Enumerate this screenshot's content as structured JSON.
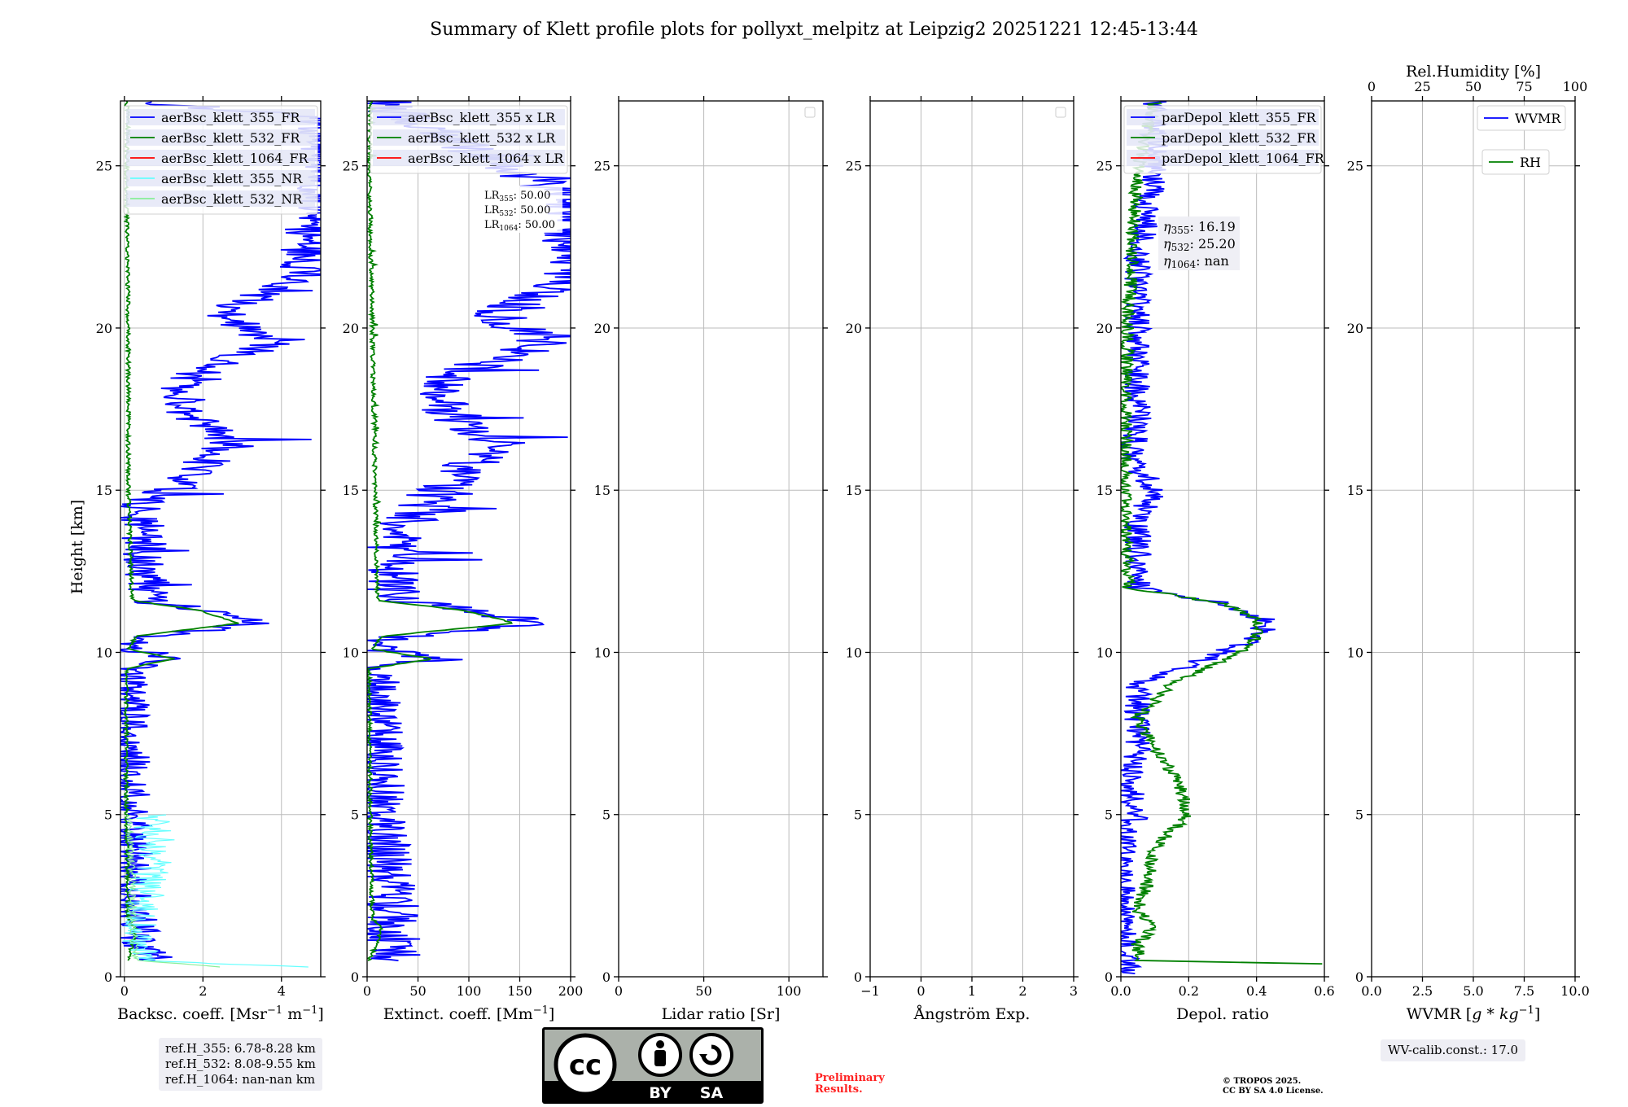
{
  "title": "Summary of Klett profile plots for pollyxt_melpitz at Leipzig2 20251221 12:45-13:44",
  "ylabel": "Height [km]",
  "colors": {
    "c355": "#0000ff",
    "c532": "#008000",
    "c1064": "#ff0000",
    "c355nr": "#66ffff",
    "c532nr": "#88ee99",
    "grid": "#bbbbbb",
    "legend_bg": "#ffffff",
    "legend_hl": "#d8dcf4"
  },
  "chart_data": [
    {
      "id": "backscatter",
      "type": "line",
      "xlabel_html": "Backsc. coeff. [Msr<tspan dy=\"-7\" font-size=\"13\">−1</tspan><tspan dy=\"7\"> m</tspan><tspan dy=\"-7\" font-size=\"13\">−1</tspan><tspan dy=\"7\">]</tspan>",
      "xlabel_text": "Backsc. coeff. [Msr−1 m−1]",
      "xlim": [
        -0.1,
        5
      ],
      "ylim": [
        0,
        27
      ],
      "xticks": [
        0,
        2,
        4
      ],
      "yticks": [
        0,
        5,
        10,
        15,
        20,
        25
      ],
      "legend": [
        "aerBsc_klett_355_FR",
        "aerBsc_klett_532_FR",
        "aerBsc_klett_1064_FR",
        "aerBsc_klett_355_NR",
        "aerBsc_klett_532_NR"
      ],
      "series": [
        {
          "name": "aerBsc_klett_355_FR",
          "color": "c355",
          "profile": [
            [
              0.5,
              0.6
            ],
            [
              0.7,
              0.65
            ],
            [
              1.0,
              0.3
            ],
            [
              1.5,
              0.4
            ],
            [
              2.0,
              0.15
            ],
            [
              3.0,
              0.15
            ],
            [
              5.0,
              0.1
            ],
            [
              8.0,
              0.05
            ],
            [
              9.5,
              0.05
            ],
            [
              9.8,
              1.5
            ],
            [
              10.1,
              0.1
            ],
            [
              10.4,
              0.3
            ],
            [
              10.9,
              3.2
            ],
            [
              11.3,
              2.2
            ],
            [
              11.6,
              0.5
            ],
            [
              12.5,
              0.6
            ],
            [
              13.5,
              0.5
            ],
            [
              14.5,
              0.4
            ],
            [
              15.3,
              1.6
            ],
            [
              16.5,
              2.6
            ],
            [
              17.5,
              1.5
            ],
            [
              18.5,
              1.5
            ],
            [
              19.5,
              3.8
            ],
            [
              20.5,
              2.5
            ],
            [
              21.5,
              4.5
            ],
            [
              22.5,
              4.5
            ],
            [
              24.0,
              5.0
            ],
            [
              26.5,
              5.0
            ],
            [
              27.0,
              0.1
            ]
          ],
          "noise": 0.6
        },
        {
          "name": "aerBsc_klett_532_FR",
          "color": "c532",
          "profile": [
            [
              0.5,
              0.1
            ],
            [
              1.5,
              0.3
            ],
            [
              1.8,
              0.1
            ],
            [
              5.0,
              0.05
            ],
            [
              9.5,
              0.05
            ],
            [
              9.8,
              1.3
            ],
            [
              10.1,
              0.1
            ],
            [
              10.5,
              0.3
            ],
            [
              10.9,
              2.9
            ],
            [
              11.3,
              1.9
            ],
            [
              11.6,
              0.2
            ],
            [
              15.0,
              0.1
            ],
            [
              20.0,
              0.1
            ],
            [
              25.0,
              0.05
            ],
            [
              26.5,
              0.1
            ],
            [
              27.0,
              0.05
            ]
          ],
          "noise": 0.05
        },
        {
          "name": "aerBsc_klett_355_NR",
          "color": "c355nr",
          "profile": [
            [
              0.3,
              4.3
            ],
            [
              0.5,
              0.5
            ],
            [
              1.5,
              0.4
            ],
            [
              3.0,
              0.6
            ],
            [
              4.0,
              0.8
            ],
            [
              5.0,
              0.7
            ]
          ],
          "noise": 0.5
        },
        {
          "name": "aerBsc_klett_532_NR",
          "color": "c532nr",
          "profile": [
            [
              0.3,
              2.5
            ],
            [
              0.5,
              0.3
            ],
            [
              1.5,
              0.2
            ],
            [
              3.0,
              0.2
            ],
            [
              5.0,
              0.1
            ]
          ],
          "noise": 0.1
        }
      ]
    },
    {
      "id": "extinction",
      "type": "line",
      "xlabel_html": "Extinct. coeff. [Mm<tspan dy=\"-7\" font-size=\"13\">−1</tspan><tspan dy=\"7\">]</tspan>",
      "xlabel_text": "Extinct. coeff. [Mm−1]",
      "xlim": [
        0,
        200
      ],
      "ylim": [
        0,
        27
      ],
      "xticks": [
        0,
        50,
        100,
        150,
        200
      ],
      "yticks": [
        0,
        5,
        10,
        15,
        20,
        25
      ],
      "legend": [
        "aerBsc_klett_355 x LR",
        "aerBsc_klett_532 x LR",
        "aerBsc_klett_1064 x LR"
      ],
      "annotation": [
        "LR355: 50.00",
        "LR532: 50.00",
        "LR1064: 50.00"
      ],
      "series": [
        {
          "name": "aerBsc_klett_355 x LR",
          "color": "c355",
          "profile": [
            [
              0.5,
              30
            ],
            [
              0.8,
              30
            ],
            [
              1.5,
              20
            ],
            [
              2.0,
              25
            ],
            [
              5.0,
              10
            ],
            [
              9.5,
              5
            ],
            [
              9.8,
              75
            ],
            [
              10.1,
              5
            ],
            [
              10.4,
              15
            ],
            [
              10.9,
              165
            ],
            [
              11.3,
              110
            ],
            [
              11.6,
              25
            ],
            [
              13.5,
              25
            ],
            [
              15.3,
              80
            ],
            [
              16.5,
              130
            ],
            [
              17.5,
              75
            ],
            [
              18.5,
              75
            ],
            [
              19.5,
              175
            ],
            [
              20.5,
              125
            ],
            [
              21.5,
              200
            ],
            [
              24.0,
              200
            ],
            [
              27.0,
              5
            ]
          ],
          "noise": 28
        },
        {
          "name": "aerBsc_klett_532 x LR",
          "color": "c532",
          "profile": [
            [
              0.5,
              2
            ],
            [
              1.5,
              15
            ],
            [
              1.8,
              5
            ],
            [
              5.0,
              3
            ],
            [
              9.5,
              2
            ],
            [
              9.8,
              65
            ],
            [
              10.1,
              5
            ],
            [
              10.5,
              15
            ],
            [
              10.9,
              145
            ],
            [
              11.3,
              95
            ],
            [
              11.6,
              10
            ],
            [
              20.0,
              5
            ],
            [
              25.0,
              2
            ],
            [
              27.0,
              3
            ]
          ],
          "noise": 2
        }
      ]
    },
    {
      "id": "lidar_ratio",
      "type": "line",
      "xlabel_text": "Lidar ratio [Sr]",
      "xlim": [
        0,
        120
      ],
      "ylim": [
        0,
        27
      ],
      "xticks": [
        0,
        50,
        100
      ],
      "yticks": [
        0,
        5,
        10,
        15,
        20,
        25
      ],
      "series": []
    },
    {
      "id": "angstroem",
      "type": "line",
      "xlabel_text": "Ångström Exp.",
      "xlim": [
        -1,
        3
      ],
      "ylim": [
        0,
        27
      ],
      "xticks": [
        -1,
        0,
        1,
        2,
        3
      ],
      "yticks": [
        0,
        5,
        10,
        15,
        20,
        25
      ],
      "series": []
    },
    {
      "id": "depol",
      "type": "line",
      "xlabel_text": "Depol. ratio",
      "xlim": [
        0,
        0.6
      ],
      "ylim": [
        0,
        27
      ],
      "xticks": [
        0.0,
        0.2,
        0.4,
        0.6
      ],
      "yticks": [
        0,
        5,
        10,
        15,
        20,
        25
      ],
      "legend": [
        "parDepol_klett_355_FR",
        "parDepol_klett_532_FR",
        "parDepol_klett_1064_FR"
      ],
      "annotation": [
        "η355: 16.19",
        "η532: 25.20",
        "η1064: nan"
      ],
      "series": [
        {
          "name": "parDepol_klett_355_FR",
          "color": "c355",
          "profile": [
            [
              0.1,
              0.02
            ],
            [
              3.0,
              0.0
            ],
            [
              4.5,
              0.01
            ],
            [
              5.0,
              0.05
            ],
            [
              6.0,
              0.02
            ],
            [
              7.0,
              0.05
            ],
            [
              8.0,
              0.05
            ],
            [
              9.0,
              0.05
            ],
            [
              10.0,
              0.3
            ],
            [
              10.5,
              0.42
            ],
            [
              11.0,
              0.42
            ],
            [
              11.5,
              0.3
            ],
            [
              12.0,
              0.05
            ],
            [
              14.0,
              0.05
            ],
            [
              15.0,
              0.1
            ],
            [
              16.0,
              0.03
            ],
            [
              17.0,
              0.05
            ],
            [
              20.0,
              0.05
            ],
            [
              22.0,
              0.05
            ],
            [
              25.0,
              0.1
            ],
            [
              27.0,
              0.1
            ]
          ],
          "noise": 0.04
        },
        {
          "name": "parDepol_klett_532_FR",
          "color": "c532",
          "profile": [
            [
              0.4,
              0.6
            ],
            [
              0.5,
              0.05
            ],
            [
              1.0,
              0.05
            ],
            [
              1.6,
              0.1
            ],
            [
              2.0,
              0.05
            ],
            [
              3.0,
              0.08
            ],
            [
              4.0,
              0.1
            ],
            [
              5.0,
              0.2
            ],
            [
              6.0,
              0.17
            ],
            [
              7.0,
              0.1
            ],
            [
              8.0,
              0.05
            ],
            [
              9.0,
              0.15
            ],
            [
              10.0,
              0.35
            ],
            [
              10.5,
              0.4
            ],
            [
              11.0,
              0.4
            ],
            [
              11.5,
              0.3
            ],
            [
              12.0,
              0.02
            ],
            [
              15.0,
              0.01
            ],
            [
              20.0,
              0.02
            ],
            [
              25.0,
              0.05
            ],
            [
              27.0,
              0.1
            ]
          ],
          "noise": 0.02
        }
      ]
    },
    {
      "id": "wvmr",
      "type": "line",
      "xlabel_html": "WVMR [<tspan font-style=\"italic\">g</tspan> * <tspan font-style=\"italic\">kg</tspan><tspan dy=\"-7\" font-size=\"13\">−1</tspan><tspan dy=\"7\">]</tspan>",
      "xlabel_text": "WVMR [g * kg−1]",
      "xlim": [
        0,
        10
      ],
      "ylim": [
        0,
        27
      ],
      "xticks": [
        0.0,
        2.5,
        5.0,
        7.5,
        10.0
      ],
      "yticks": [
        0,
        5,
        10,
        15,
        20,
        25
      ],
      "top_axis": {
        "label": "Rel.Humidity [%]",
        "xlim": [
          0,
          100
        ],
        "xticks": [
          0,
          25,
          50,
          75,
          100
        ]
      },
      "legend": [
        "WVMR",
        "RH"
      ],
      "series": []
    }
  ],
  "refh": [
    "ref.H_355: 6.78-8.28 km",
    "ref.H_532: 8.08-9.55 km",
    "ref.H_1064: nan-nan km"
  ],
  "wvcalib": "WV-calib.const.: 17.0",
  "preliminary": [
    "Preliminary",
    "Results."
  ],
  "copyright": [
    "© TROPOS 2025.",
    "CC BY SA 4.0 License."
  ],
  "cc_badge": {
    "left": "BY",
    "right": "SA"
  }
}
